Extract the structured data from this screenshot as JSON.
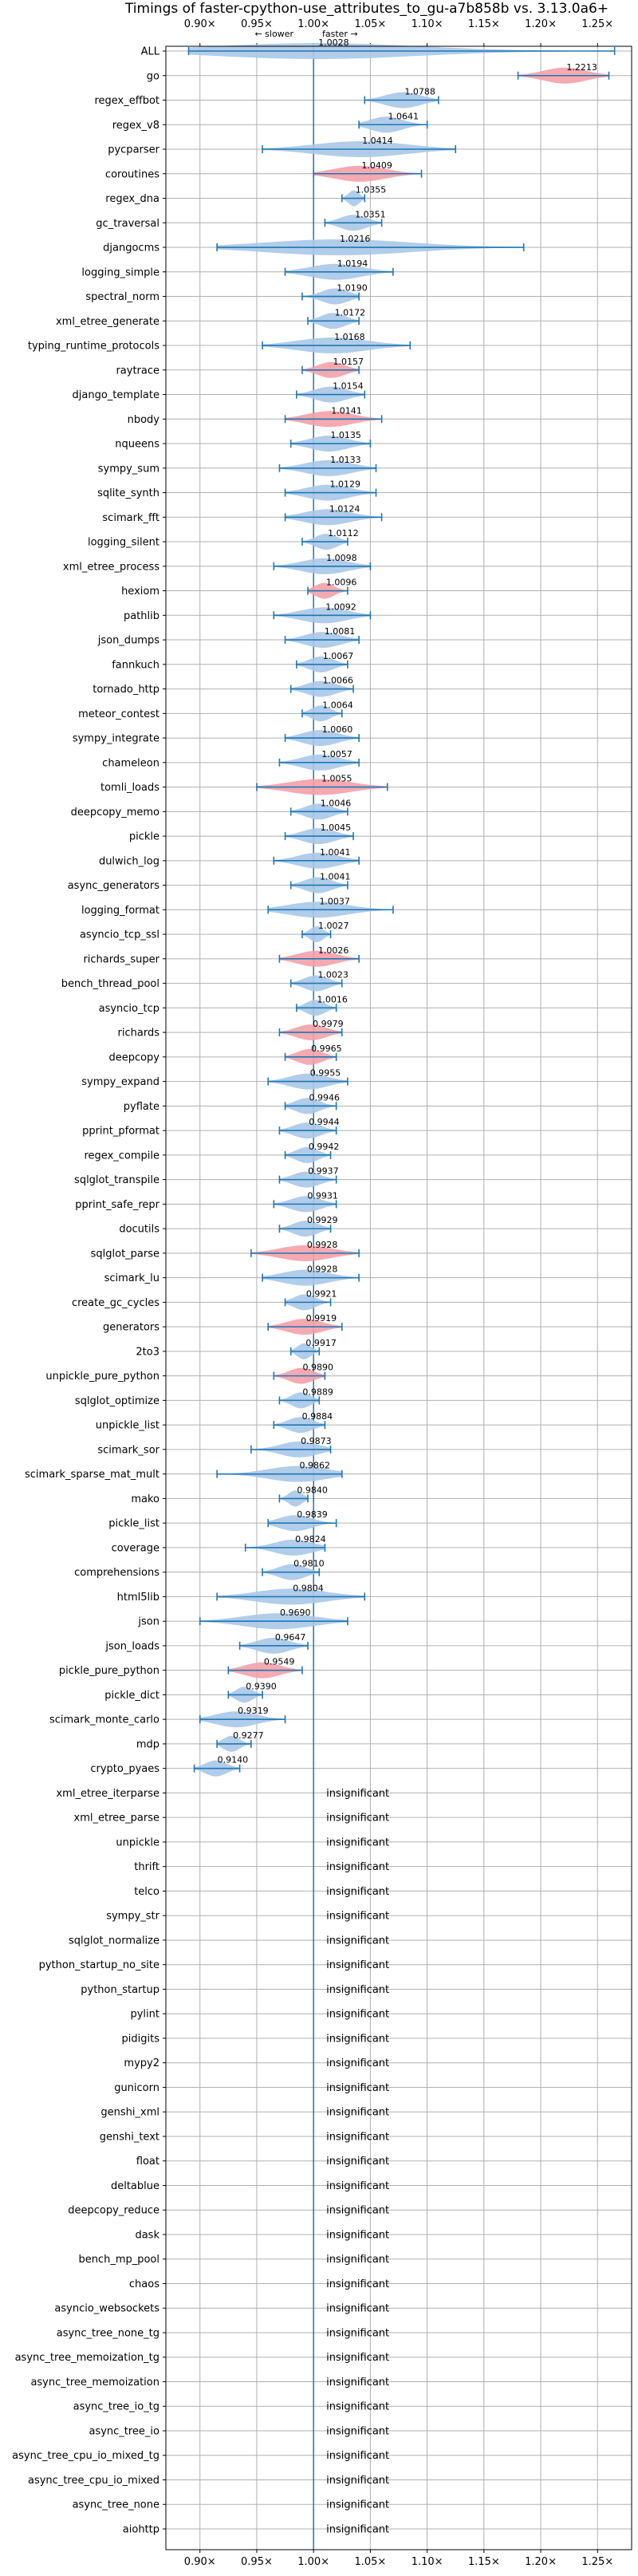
{
  "chart_data": {
    "type": "violin",
    "title": "Timings of faster-cpython-use_attributes_to_gu-a7b858b vs. 3.13.0a6+",
    "xlim": [
      0.87,
      1.28
    ],
    "xticks": [
      "0.90×",
      "0.95×",
      "1.00×",
      "1.05×",
      "1.10×",
      "1.15×",
      "1.20×",
      "1.25×"
    ],
    "xtick_values": [
      0.9,
      0.95,
      1.0,
      1.05,
      1.1,
      1.15,
      1.2,
      1.25
    ],
    "direction_slower": "← slower",
    "direction_faster": "faster →",
    "insignificant_label": "insignificant",
    "grid": true,
    "colors": {
      "faster": "#a8c8e8",
      "slower": "#f4a0a8",
      "line": "#1f77b4"
    },
    "benchmarks": [
      {
        "name": "ALL",
        "value": 1.0028,
        "label": "1.0028",
        "min": 0.89,
        "max": 1.265,
        "c": "b",
        "sig": true
      },
      {
        "name": "go",
        "value": 1.2213,
        "label": "1.2213",
        "min": 1.18,
        "max": 1.26,
        "c": "r",
        "sig": true
      },
      {
        "name": "regex_effbot",
        "value": 1.0788,
        "label": "1.0788",
        "min": 1.045,
        "max": 1.11,
        "c": "b",
        "sig": true
      },
      {
        "name": "regex_v8",
        "value": 1.0641,
        "label": "1.0641",
        "min": 1.04,
        "max": 1.1,
        "c": "b",
        "sig": true
      },
      {
        "name": "pycparser",
        "value": 1.0414,
        "label": "1.0414",
        "min": 0.955,
        "max": 1.125,
        "c": "b",
        "sig": true
      },
      {
        "name": "coroutines",
        "value": 1.0409,
        "label": "1.0409",
        "min": 1.0,
        "max": 1.095,
        "c": "r",
        "sig": true
      },
      {
        "name": "regex_dna",
        "value": 1.0355,
        "label": "1.0355",
        "min": 1.025,
        "max": 1.045,
        "c": "b",
        "sig": true
      },
      {
        "name": "gc_traversal",
        "value": 1.0351,
        "label": "1.0351",
        "min": 1.01,
        "max": 1.06,
        "c": "b",
        "sig": true
      },
      {
        "name": "djangocms",
        "value": 1.0216,
        "label": "1.0216",
        "min": 0.915,
        "max": 1.185,
        "c": "b",
        "sig": true
      },
      {
        "name": "logging_simple",
        "value": 1.0194,
        "label": "1.0194",
        "min": 0.975,
        "max": 1.07,
        "c": "b",
        "sig": true
      },
      {
        "name": "spectral_norm",
        "value": 1.019,
        "label": "1.0190",
        "min": 0.99,
        "max": 1.04,
        "c": "b",
        "sig": true
      },
      {
        "name": "xml_etree_generate",
        "value": 1.0172,
        "label": "1.0172",
        "min": 0.995,
        "max": 1.04,
        "c": "b",
        "sig": true
      },
      {
        "name": "typing_runtime_protocols",
        "value": 1.0168,
        "label": "1.0168",
        "min": 0.955,
        "max": 1.085,
        "c": "b",
        "sig": true
      },
      {
        "name": "raytrace",
        "value": 1.0157,
        "label": "1.0157",
        "min": 0.99,
        "max": 1.04,
        "c": "r",
        "sig": true
      },
      {
        "name": "django_template",
        "value": 1.0154,
        "label": "1.0154",
        "min": 0.985,
        "max": 1.045,
        "c": "b",
        "sig": true
      },
      {
        "name": "nbody",
        "value": 1.0141,
        "label": "1.0141",
        "min": 0.975,
        "max": 1.06,
        "c": "r",
        "sig": true
      },
      {
        "name": "nqueens",
        "value": 1.0135,
        "label": "1.0135",
        "min": 0.98,
        "max": 1.05,
        "c": "b",
        "sig": true
      },
      {
        "name": "sympy_sum",
        "value": 1.0133,
        "label": "1.0133",
        "min": 0.97,
        "max": 1.055,
        "c": "b",
        "sig": true
      },
      {
        "name": "sqlite_synth",
        "value": 1.0129,
        "label": "1.0129",
        "min": 0.975,
        "max": 1.055,
        "c": "b",
        "sig": true
      },
      {
        "name": "scimark_fft",
        "value": 1.0124,
        "label": "1.0124",
        "min": 0.975,
        "max": 1.06,
        "c": "b",
        "sig": true
      },
      {
        "name": "logging_silent",
        "value": 1.0112,
        "label": "1.0112",
        "min": 0.99,
        "max": 1.03,
        "c": "b",
        "sig": true
      },
      {
        "name": "xml_etree_process",
        "value": 1.0098,
        "label": "1.0098",
        "min": 0.965,
        "max": 1.05,
        "c": "b",
        "sig": true
      },
      {
        "name": "hexiom",
        "value": 1.0096,
        "label": "1.0096",
        "min": 0.995,
        "max": 1.03,
        "c": "r",
        "sig": true
      },
      {
        "name": "pathlib",
        "value": 1.0092,
        "label": "1.0092",
        "min": 0.965,
        "max": 1.05,
        "c": "b",
        "sig": true
      },
      {
        "name": "json_dumps",
        "value": 1.0081,
        "label": "1.0081",
        "min": 0.975,
        "max": 1.04,
        "c": "b",
        "sig": true
      },
      {
        "name": "fannkuch",
        "value": 1.0067,
        "label": "1.0067",
        "min": 0.985,
        "max": 1.03,
        "c": "b",
        "sig": true
      },
      {
        "name": "tornado_http",
        "value": 1.0066,
        "label": "1.0066",
        "min": 0.98,
        "max": 1.035,
        "c": "b",
        "sig": true
      },
      {
        "name": "meteor_contest",
        "value": 1.0064,
        "label": "1.0064",
        "min": 0.99,
        "max": 1.025,
        "c": "b",
        "sig": true
      },
      {
        "name": "sympy_integrate",
        "value": 1.006,
        "label": "1.0060",
        "min": 0.975,
        "max": 1.04,
        "c": "b",
        "sig": true
      },
      {
        "name": "chameleon",
        "value": 1.0057,
        "label": "1.0057",
        "min": 0.97,
        "max": 1.04,
        "c": "b",
        "sig": true
      },
      {
        "name": "tomli_loads",
        "value": 1.0055,
        "label": "1.0055",
        "min": 0.95,
        "max": 1.065,
        "c": "r",
        "sig": true
      },
      {
        "name": "deepcopy_memo",
        "value": 1.0046,
        "label": "1.0046",
        "min": 0.98,
        "max": 1.03,
        "c": "b",
        "sig": true
      },
      {
        "name": "pickle",
        "value": 1.0045,
        "label": "1.0045",
        "min": 0.975,
        "max": 1.035,
        "c": "b",
        "sig": true
      },
      {
        "name": "dulwich_log",
        "value": 1.0041,
        "label": "1.0041",
        "min": 0.965,
        "max": 1.04,
        "c": "b",
        "sig": true
      },
      {
        "name": "async_generators",
        "value": 1.0041,
        "label": "1.0041",
        "min": 0.98,
        "max": 1.03,
        "c": "b",
        "sig": true
      },
      {
        "name": "logging_format",
        "value": 1.0037,
        "label": "1.0037",
        "min": 0.96,
        "max": 1.07,
        "c": "b",
        "sig": true
      },
      {
        "name": "asyncio_tcp_ssl",
        "value": 1.0027,
        "label": "1.0027",
        "min": 0.99,
        "max": 1.015,
        "c": "b",
        "sig": true
      },
      {
        "name": "richards_super",
        "value": 1.0026,
        "label": "1.0026",
        "min": 0.97,
        "max": 1.04,
        "c": "r",
        "sig": true
      },
      {
        "name": "bench_thread_pool",
        "value": 1.0023,
        "label": "1.0023",
        "min": 0.98,
        "max": 1.025,
        "c": "b",
        "sig": true
      },
      {
        "name": "asyncio_tcp",
        "value": 1.0016,
        "label": "1.0016",
        "min": 0.985,
        "max": 1.02,
        "c": "b",
        "sig": true
      },
      {
        "name": "richards",
        "value": 0.9979,
        "label": "0.9979",
        "min": 0.97,
        "max": 1.025,
        "c": "r",
        "sig": true
      },
      {
        "name": "deepcopy",
        "value": 0.9965,
        "label": "0.9965",
        "min": 0.975,
        "max": 1.02,
        "c": "r",
        "sig": true
      },
      {
        "name": "sympy_expand",
        "value": 0.9955,
        "label": "0.9955",
        "min": 0.96,
        "max": 1.03,
        "c": "b",
        "sig": true
      },
      {
        "name": "pyflate",
        "value": 0.9946,
        "label": "0.9946",
        "min": 0.975,
        "max": 1.02,
        "c": "b",
        "sig": true
      },
      {
        "name": "pprint_pformat",
        "value": 0.9944,
        "label": "0.9944",
        "min": 0.97,
        "max": 1.02,
        "c": "b",
        "sig": true
      },
      {
        "name": "regex_compile",
        "value": 0.9942,
        "label": "0.9942",
        "min": 0.975,
        "max": 1.015,
        "c": "b",
        "sig": true
      },
      {
        "name": "sqlglot_transpile",
        "value": 0.9937,
        "label": "0.9937",
        "min": 0.97,
        "max": 1.02,
        "c": "b",
        "sig": true
      },
      {
        "name": "pprint_safe_repr",
        "value": 0.9931,
        "label": "0.9931",
        "min": 0.965,
        "max": 1.02,
        "c": "b",
        "sig": true
      },
      {
        "name": "docutils",
        "value": 0.9929,
        "label": "0.9929",
        "min": 0.97,
        "max": 1.015,
        "c": "b",
        "sig": true
      },
      {
        "name": "sqlglot_parse",
        "value": 0.9928,
        "label": "0.9928",
        "min": 0.945,
        "max": 1.04,
        "c": "r",
        "sig": true
      },
      {
        "name": "scimark_lu",
        "value": 0.9928,
        "label": "0.9928",
        "min": 0.955,
        "max": 1.04,
        "c": "b",
        "sig": true
      },
      {
        "name": "create_gc_cycles",
        "value": 0.9921,
        "label": "0.9921",
        "min": 0.975,
        "max": 1.015,
        "c": "b",
        "sig": true
      },
      {
        "name": "generators",
        "value": 0.9919,
        "label": "0.9919",
        "min": 0.96,
        "max": 1.025,
        "c": "r",
        "sig": true
      },
      {
        "name": "2to3",
        "value": 0.9917,
        "label": "0.9917",
        "min": 0.98,
        "max": 1.005,
        "c": "b",
        "sig": true
      },
      {
        "name": "unpickle_pure_python",
        "value": 0.989,
        "label": "0.9890",
        "min": 0.965,
        "max": 1.01,
        "c": "r",
        "sig": true
      },
      {
        "name": "sqlglot_optimize",
        "value": 0.9889,
        "label": "0.9889",
        "min": 0.97,
        "max": 1.005,
        "c": "b",
        "sig": true
      },
      {
        "name": "unpickle_list",
        "value": 0.9884,
        "label": "0.9884",
        "min": 0.965,
        "max": 1.01,
        "c": "b",
        "sig": true
      },
      {
        "name": "scimark_sor",
        "value": 0.9873,
        "label": "0.9873",
        "min": 0.945,
        "max": 1.015,
        "c": "b",
        "sig": true
      },
      {
        "name": "scimark_sparse_mat_mult",
        "value": 0.9862,
        "label": "0.9862",
        "min": 0.915,
        "max": 1.025,
        "c": "b",
        "sig": true
      },
      {
        "name": "mako",
        "value": 0.984,
        "label": "0.9840",
        "min": 0.97,
        "max": 0.995,
        "c": "b",
        "sig": true
      },
      {
        "name": "pickle_list",
        "value": 0.9839,
        "label": "0.9839",
        "min": 0.96,
        "max": 1.02,
        "c": "b",
        "sig": true
      },
      {
        "name": "coverage",
        "value": 0.9824,
        "label": "0.9824",
        "min": 0.94,
        "max": 1.01,
        "c": "b",
        "sig": true
      },
      {
        "name": "comprehensions",
        "value": 0.981,
        "label": "0.9810",
        "min": 0.955,
        "max": 1.005,
        "c": "b",
        "sig": true
      },
      {
        "name": "html5lib",
        "value": 0.9804,
        "label": "0.9804",
        "min": 0.915,
        "max": 1.045,
        "c": "b",
        "sig": true
      },
      {
        "name": "json",
        "value": 0.969,
        "label": "0.9690",
        "min": 0.9,
        "max": 1.03,
        "c": "b",
        "sig": true
      },
      {
        "name": "json_loads",
        "value": 0.9647,
        "label": "0.9647",
        "min": 0.935,
        "max": 0.995,
        "c": "b",
        "sig": true
      },
      {
        "name": "pickle_pure_python",
        "value": 0.9549,
        "label": "0.9549",
        "min": 0.925,
        "max": 0.99,
        "c": "r",
        "sig": true
      },
      {
        "name": "pickle_dict",
        "value": 0.939,
        "label": "0.9390",
        "min": 0.925,
        "max": 0.955,
        "c": "b",
        "sig": true
      },
      {
        "name": "scimark_monte_carlo",
        "value": 0.9319,
        "label": "0.9319",
        "min": 0.9,
        "max": 0.975,
        "c": "b",
        "sig": true
      },
      {
        "name": "mdp",
        "value": 0.9277,
        "label": "0.9277",
        "min": 0.915,
        "max": 0.945,
        "c": "b",
        "sig": true
      },
      {
        "name": "crypto_pyaes",
        "value": 0.914,
        "label": "0.9140",
        "min": 0.895,
        "max": 0.935,
        "c": "b",
        "sig": true
      },
      {
        "name": "xml_etree_iterparse",
        "sig": false
      },
      {
        "name": "xml_etree_parse",
        "sig": false
      },
      {
        "name": "unpickle",
        "sig": false
      },
      {
        "name": "thrift",
        "sig": false
      },
      {
        "name": "telco",
        "sig": false
      },
      {
        "name": "sympy_str",
        "sig": false
      },
      {
        "name": "sqlglot_normalize",
        "sig": false
      },
      {
        "name": "python_startup_no_site",
        "sig": false
      },
      {
        "name": "python_startup",
        "sig": false
      },
      {
        "name": "pylint",
        "sig": false
      },
      {
        "name": "pidigits",
        "sig": false
      },
      {
        "name": "mypy2",
        "sig": false
      },
      {
        "name": "gunicorn",
        "sig": false
      },
      {
        "name": "genshi_xml",
        "sig": false
      },
      {
        "name": "genshi_text",
        "sig": false
      },
      {
        "name": "float",
        "sig": false
      },
      {
        "name": "deltablue",
        "sig": false
      },
      {
        "name": "deepcopy_reduce",
        "sig": false
      },
      {
        "name": "dask",
        "sig": false
      },
      {
        "name": "bench_mp_pool",
        "sig": false
      },
      {
        "name": "chaos",
        "sig": false
      },
      {
        "name": "asyncio_websockets",
        "sig": false
      },
      {
        "name": "async_tree_none_tg",
        "sig": false
      },
      {
        "name": "async_tree_memoization_tg",
        "sig": false
      },
      {
        "name": "async_tree_memoization",
        "sig": false
      },
      {
        "name": "async_tree_io_tg",
        "sig": false
      },
      {
        "name": "async_tree_io",
        "sig": false
      },
      {
        "name": "async_tree_cpu_io_mixed_tg",
        "sig": false
      },
      {
        "name": "async_tree_cpu_io_mixed",
        "sig": false
      },
      {
        "name": "async_tree_none",
        "sig": false
      },
      {
        "name": "aiohttp",
        "sig": false
      }
    ]
  }
}
